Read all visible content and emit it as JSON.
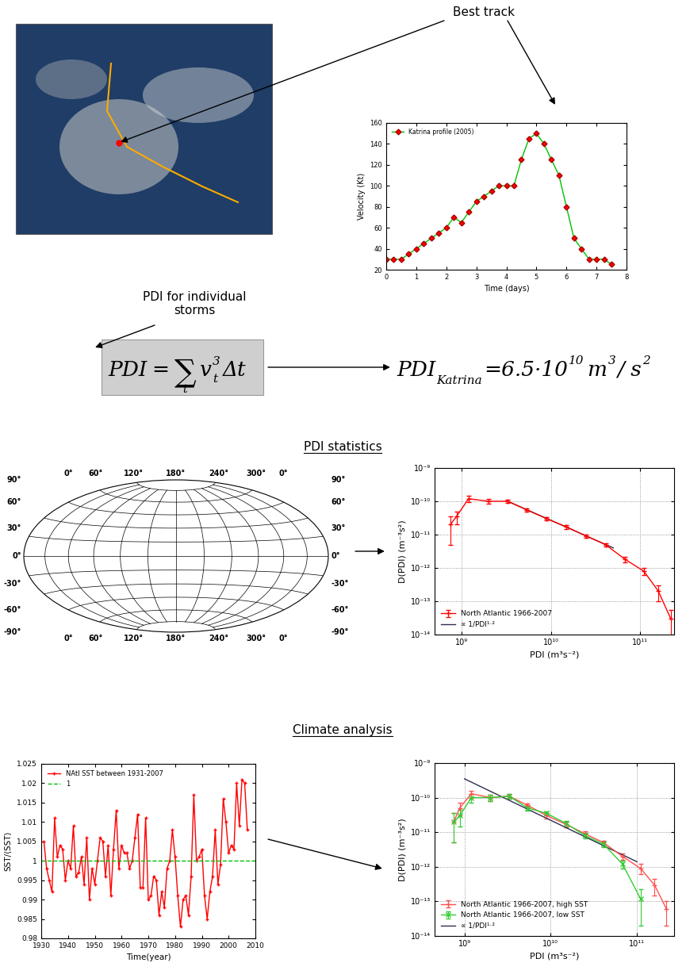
{
  "labels": {
    "best_track": "Best track",
    "pdi_individual": "PDI for individual\nstorms",
    "pdi_statistics": "PDI statistics",
    "climate_analysis": "Climate analysis"
  },
  "formula": {
    "lhs": "PDI",
    "equals": "=",
    "sum": "∑",
    "index": "t",
    "variable": "v",
    "subscript": "t",
    "exponent": "3",
    "step": "Δt"
  },
  "result": {
    "lhs": "PDI",
    "subscript": "Katrina",
    "value": "=6.5·10",
    "exponent": "10",
    "unit": "m",
    "unit_exponent": "3",
    "unit_rest": "/ s",
    "unit_rest_exponent": "2"
  },
  "map": {
    "lon_labels": [
      {
        "value": 0,
        "label": "0°"
      },
      {
        "value": 60,
        "label": "60°"
      },
      {
        "value": 120,
        "label": "120°"
      },
      {
        "value": 180,
        "label": "180°"
      },
      {
        "value": 240,
        "label": "240°"
      },
      {
        "value": 300,
        "label": "300°"
      },
      {
        "value": 360,
        "label": "0°"
      }
    ],
    "lat_labels": [
      {
        "value": 90,
        "label": "90°"
      },
      {
        "value": 60,
        "label": "60°"
      },
      {
        "value": 30,
        "label": "30°"
      },
      {
        "value": 0,
        "label": "0°"
      },
      {
        "value": -30,
        "label": "-30°"
      },
      {
        "value": -60,
        "label": "-60°"
      },
      {
        "value": -90,
        "label": "-90°"
      }
    ]
  },
  "chart_data": [
    {
      "type": "line",
      "x": [
        0,
        0.25,
        0.5,
        0.75,
        1,
        1.25,
        1.5,
        1.75,
        2,
        2.25,
        2.5,
        2.75,
        3,
        3.25,
        3.5,
        3.75,
        4,
        4.25,
        4.5,
        4.75,
        5,
        5.25,
        5.5,
        5.75,
        6,
        6.25,
        6.5,
        6.75,
        7,
        7.25,
        7.5
      ],
      "xlabel": "Time (days)",
      "ylabel": "Velocity (Kt)",
      "xlim": [
        0,
        8
      ],
      "xticks": [
        0,
        1,
        2,
        3,
        4,
        5,
        6,
        7,
        8
      ],
      "ylim": [
        20,
        160
      ],
      "yticks": [
        20,
        40,
        60,
        80,
        100,
        120,
        140,
        160
      ],
      "legend": "upper left",
      "grid": false,
      "series": [
        {
          "name": "Katrina profile (2005)",
          "color": "#00c000",
          "marker": "diamond",
          "line_style": "solid",
          "values": [
            30,
            30,
            30,
            35,
            40,
            45,
            50,
            55,
            60,
            70,
            65,
            75,
            85,
            90,
            95,
            100,
            100,
            100,
            125,
            145,
            150,
            140,
            125,
            110,
            80,
            50,
            40,
            30,
            30,
            30,
            25
          ]
        }
      ]
    },
    {
      "type": "line",
      "log": true,
      "grid": true,
      "legend": "lower left",
      "xlabel": "PDI (m³s⁻²)",
      "ylabel": "D(PDI) (m⁻³s²)",
      "xlim": [
        500000000.0,
        240000000000.0
      ],
      "xticks": [
        {
          "value": 1000000000.0,
          "label": "10⁹"
        },
        {
          "value": 10000000000.0,
          "label": "10¹⁰"
        },
        {
          "value": 100000000000.0,
          "label": "10¹¹"
        }
      ],
      "ylim": [
        1e-14,
        1e-09
      ],
      "yticks": [
        {
          "value": 1e-14,
          "label": "10⁻¹⁴"
        },
        {
          "value": 1e-13,
          "label": "10⁻¹³"
        },
        {
          "value": 1e-12,
          "label": "10⁻¹²"
        },
        {
          "value": 1e-11,
          "label": "10⁻¹¹"
        },
        {
          "value": 1e-10,
          "label": "10⁻¹⁰"
        },
        {
          "value": 1e-09,
          "label": "10⁻⁹"
        }
      ],
      "series": [
        {
          "name": "North Atlantic 1966-2007",
          "color": "#ff0000",
          "marker": "plus",
          "line_style": "solid",
          "x": [
            750000000.0,
            880000000.0,
            1200000000.0,
            2000000000.0,
            3300000000.0,
            5400000000.0,
            9000000000.0,
            15000000000.0,
            25000000000.0,
            41000000000.0,
            68000000000.0,
            110000000000.0,
            160000000000.0,
            220000000000.0
          ],
          "values": [
            2e-11,
            3.5e-11,
            1.2e-10,
            1e-10,
            1e-10,
            5.5e-11,
            3e-11,
            1.7e-11,
            9e-12,
            5e-12,
            1.8e-12,
            8e-13,
            2e-13,
            3e-14
          ],
          "errors": [
            1.5e-11,
            1.5e-11,
            2.5e-11,
            1.5e-11,
            1e-11,
            6e-12,
            3e-12,
            2e-12,
            1e-12,
            6e-13,
            3e-13,
            2e-13,
            1e-13,
            2.5e-14
          ]
        },
        {
          "name": "∝ 1/PDI¹·²",
          "color": "#2f2f4f",
          "line_style": "solid",
          "x": [
            3300000000.0,
            50000000000.0
          ],
          "values": [
            1e-10,
            4e-12
          ]
        }
      ]
    },
    {
      "type": "line",
      "grid": false,
      "legend": "upper left",
      "xlabel": "Time(year)",
      "ylabel": "SST/⟨SST⟩",
      "x": [
        1931,
        1932,
        1933,
        1934,
        1935,
        1936,
        1937,
        1938,
        1939,
        1940,
        1941,
        1942,
        1943,
        1944,
        1945,
        1946,
        1947,
        1948,
        1949,
        1950,
        1951,
        1952,
        1953,
        1954,
        1955,
        1956,
        1957,
        1958,
        1959,
        1960,
        1961,
        1962,
        1963,
        1964,
        1965,
        1966,
        1967,
        1968,
        1969,
        1970,
        1971,
        1972,
        1973,
        1974,
        1975,
        1976,
        1977,
        1978,
        1979,
        1980,
        1981,
        1982,
        1983,
        1984,
        1985,
        1986,
        1987,
        1988,
        1989,
        1990,
        1991,
        1992,
        1993,
        1994,
        1995,
        1996,
        1997,
        1998,
        1999,
        2000,
        2001,
        2002,
        2003,
        2004,
        2005,
        2006,
        2007
      ],
      "xlim": [
        1930,
        2010
      ],
      "xticks": [
        1930,
        1940,
        1950,
        1960,
        1970,
        1980,
        1990,
        2000,
        2010
      ],
      "ylim": [
        0.98,
        1.025
      ],
      "yticks": [
        0.98,
        0.985,
        0.99,
        0.995,
        1,
        1.005,
        1.01,
        1.015,
        1.02,
        1.025
      ],
      "series": [
        {
          "name": "NAtl SST between 1931-2007",
          "color": "#ff0000",
          "marker": "plus",
          "line_style": "solid",
          "values": [
            1.005,
            0.998,
            0.995,
            0.992,
            1.011,
            1.001,
            1.004,
            1.003,
            0.995,
            1.0,
            0.998,
            1.009,
            0.996,
            0.997,
            1.001,
            0.994,
            1.006,
            0.99,
            0.998,
            0.994,
            1.0,
            1.006,
            1.005,
            0.996,
            1.004,
            0.991,
            1.003,
            1.013,
            0.998,
            1.004,
            1.002,
            1.002,
            0.998,
            1.0,
            1.006,
            1.012,
            0.993,
            0.993,
            1.011,
            0.99,
            0.991,
            0.996,
            0.995,
            0.986,
            0.992,
            0.988,
            0.998,
            1.0,
            1.008,
            1.001,
            0.991,
            0.983,
            0.99,
            0.991,
            0.986,
            0.996,
            1.017,
            1.0,
            1.001,
            1.003,
            0.991,
            0.985,
            0.992,
            0.996,
            1.008,
            0.994,
            0.999,
            1.016,
            1.01,
            1.002,
            1.004,
            1.003,
            1.02,
            1.009,
            1.021,
            1.02,
            1.008
          ]
        },
        {
          "name": "1",
          "color": "#00c000",
          "line_style": "dashed",
          "x": [
            1930,
            2010
          ],
          "values": [
            1,
            1
          ]
        }
      ]
    },
    {
      "type": "line",
      "log": true,
      "grid": true,
      "legend": "lower left",
      "xlabel": "PDI (m³s⁻²)",
      "ylabel": "D(PDI) (m⁻³s²)",
      "xlim": [
        450000000.0,
        270000000000.0
      ],
      "xticks": [
        {
          "value": 1000000000.0,
          "label": "10⁹"
        },
        {
          "value": 10000000000.0,
          "label": "10¹⁰"
        },
        {
          "value": 100000000000.0,
          "label": "10¹¹"
        }
      ],
      "ylim": [
        1e-14,
        1e-09
      ],
      "yticks": [
        {
          "value": 1e-14,
          "label": "10⁻¹⁴"
        },
        {
          "value": 1e-13,
          "label": "10⁻¹³"
        },
        {
          "value": 1e-12,
          "label": "10⁻¹²"
        },
        {
          "value": 1e-11,
          "label": "10⁻¹¹"
        },
        {
          "value": 1e-10,
          "label": "10⁻¹⁰"
        },
        {
          "value": 1e-09,
          "label": "10⁻⁹"
        }
      ],
      "series": [
        {
          "name": "North Atlantic 1966-2007, high SST",
          "color": "#ff5050",
          "marker": "plus",
          "line_style": "solid",
          "x": [
            750000000.0,
            880000000.0,
            1200000000.0,
            2000000000.0,
            3300000000.0,
            5400000000.0,
            9000000000.0,
            15000000000.0,
            25000000000.0,
            41000000000.0,
            68000000000.0,
            110000000000.0,
            160000000000.0,
            220000000000.0
          ],
          "values": [
            2e-11,
            5e-11,
            1.3e-10,
            1e-10,
            1.1e-10,
            6e-11,
            3e-11,
            1.7e-11,
            9e-12,
            5e-12,
            2e-12,
            9e-13,
            3e-13,
            6e-14
          ],
          "errors": [
            1.5e-11,
            2e-11,
            3e-11,
            2e-11,
            1.5e-11,
            8e-12,
            5e-12,
            3e-12,
            1.5e-12,
            8e-13,
            4e-13,
            3e-13,
            1.5e-13,
            4e-14
          ]
        },
        {
          "name": "North Atlantic 1966-2007, low SST",
          "color": "#33cc33",
          "marker": "x",
          "line_style": "solid",
          "x": [
            750000000.0,
            880000000.0,
            1200000000.0,
            2000000000.0,
            3300000000.0,
            5400000000.0,
            9000000000.0,
            15000000000.0,
            25000000000.0,
            41000000000.0,
            68000000000.0,
            110000000000.0
          ],
          "values": [
            2e-11,
            3e-11,
            1e-10,
            1e-10,
            1.1e-10,
            5e-11,
            3.5e-11,
            1.8e-11,
            8e-12,
            4.5e-12,
            1.2e-12,
            1.2e-13
          ],
          "errors": [
            1.5e-11,
            1.5e-11,
            3e-11,
            2e-11,
            1.5e-11,
            8e-12,
            5e-12,
            3e-12,
            1.5e-12,
            8e-13,
            3e-13,
            1e-13
          ]
        },
        {
          "name": "∝ 1/PDI¹·²",
          "color": "#2f2f4f",
          "line_style": "solid",
          "x": [
            1000000000.0,
            100000000000.0
          ],
          "values": [
            3.5e-10,
            1.4e-12
          ]
        }
      ]
    }
  ]
}
